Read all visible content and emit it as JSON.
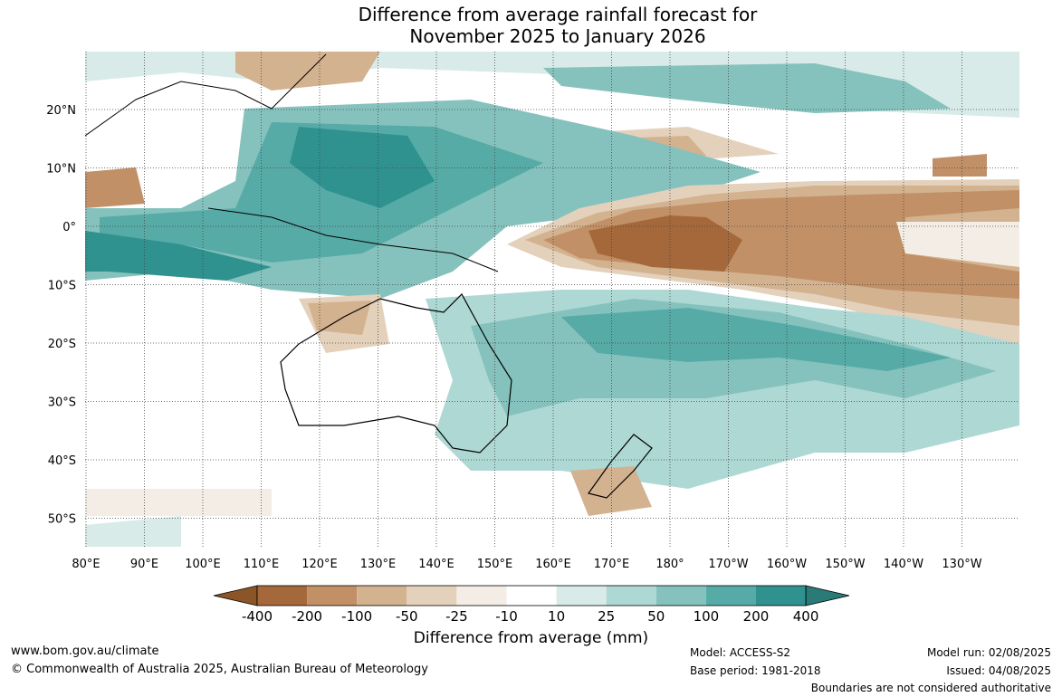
{
  "title": {
    "line1": "Difference from average rainfall forecast for",
    "line2": "November 2025 to January 2026"
  },
  "map": {
    "lon_labels": [
      "80°E",
      "90°E",
      "100°E",
      "110°E",
      "120°E",
      "130°E",
      "140°E",
      "150°E",
      "160°E",
      "170°E",
      "180°",
      "170°W",
      "160°W",
      "150°W",
      "140°W",
      "130°W"
    ],
    "lat_labels": [
      "20°N",
      "10°N",
      "0°",
      "10°S",
      "20°S",
      "30°S",
      "40°S",
      "50°S"
    ],
    "lon_range": [
      80,
      240
    ],
    "lat_range": [
      -55,
      30
    ],
    "gridlines": "dotted"
  },
  "legend": {
    "ticks": [
      "-400",
      "-200",
      "-100",
      "-50",
      "-25",
      "-10",
      "10",
      "25",
      "50",
      "100",
      "200",
      "400"
    ],
    "colors": [
      "#a5683a",
      "#c29066",
      "#d3b290",
      "#e4d1bb",
      "#f3ede6",
      "#ffffff",
      "#d8ebe8",
      "#aed8d4",
      "#85c2bd",
      "#56aba7",
      "#2f928f",
      "#2a7a78"
    ],
    "label": "Difference from average (mm)"
  },
  "footer": {
    "website": "www.bom.gov.au/climate",
    "copyright": "© Commonwealth of Australia 2025, Australian Bureau of Meteorology",
    "model": "Model: ACCESS-S2",
    "base_period": "Base period: 1981-2018",
    "model_run": "Model run: 02/08/2025",
    "issued": "Issued: 04/08/2025",
    "disclaimer": "Boundaries are not considered authoritative"
  }
}
